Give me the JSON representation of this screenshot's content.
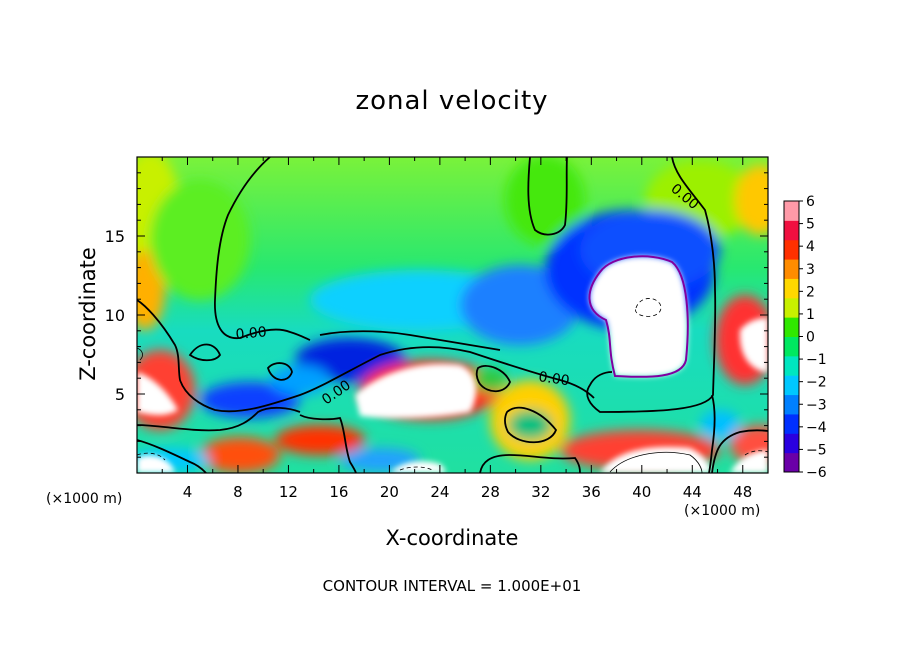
{
  "chart_data": {
    "type": "heatmap",
    "title": "zonal velocity",
    "xlabel": "X-coordinate",
    "ylabel": "Z-coordinate",
    "x_unit_label_left": "(×1000 m)",
    "x_unit_label_right": "(×1000 m)",
    "footer": "CONTOUR INTERVAL = 1.000E+01",
    "xlim": [
      0,
      50
    ],
    "ylim": [
      0,
      20
    ],
    "x_ticks": [
      "4",
      "8",
      "12",
      "16",
      "20",
      "24",
      "28",
      "32",
      "36",
      "40",
      "44",
      "48"
    ],
    "y_ticks": [
      "5",
      "10",
      "15"
    ],
    "colorbar": {
      "ticks": [
        "6",
        "5",
        "4",
        "3",
        "2",
        "1",
        "0",
        "-1",
        "-2",
        "-3",
        "-4",
        "-5",
        "-6"
      ],
      "range": [
        -6,
        6
      ],
      "colors": [
        "#6a00a8",
        "#2a00e0",
        "#0030ff",
        "#0080ff",
        "#00c8ff",
        "#00e6c0",
        "#00e860",
        "#30e800",
        "#c8f000",
        "#ffd800",
        "#ff8c00",
        "#ff3000",
        "#f01040",
        "#ff9aa8"
      ]
    },
    "contour_labels": [
      "0.00",
      "0.00",
      "0.00",
      "0.00"
    ],
    "grid": false
  }
}
